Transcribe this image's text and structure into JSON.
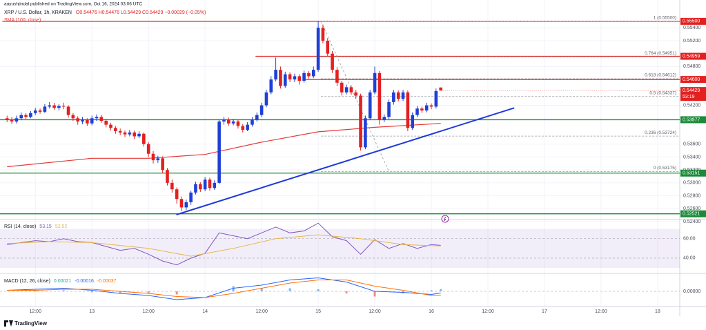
{
  "header": {
    "publisher": "aayushjindal published on TradingView.com, Oct 16, 2024 03:06 UTC",
    "symbol": "XRP / U.S. Dollar, 1h, KRAKEN",
    "ohlc": "O0.54476 H0.54476 L0.54429 C0.54429 −0.00029 (−0.05%)"
  },
  "footer": {
    "brand": "TradingView"
  },
  "chart_data": [
    {
      "type": "candlestick",
      "xlim": [
        -19.5,
        124.7
      ],
      "xticks": [
        {
          "value": -12,
          "label": "12:00"
        },
        {
          "value": 0,
          "label": "13"
        },
        {
          "value": 12,
          "label": "12:00"
        },
        {
          "value": 24,
          "label": "14"
        },
        {
          "value": 36,
          "label": "12:00"
        },
        {
          "value": 48,
          "label": "15"
        },
        {
          "value": 60,
          "label": "12:00"
        },
        {
          "value": 72,
          "label": "16"
        },
        {
          "value": 84,
          "label": "12:00"
        },
        {
          "value": 96,
          "label": "17"
        },
        {
          "value": 108,
          "label": "12:00"
        },
        {
          "value": 120,
          "label": "18"
        }
      ],
      "ylim": [
        0.52443,
        0.5583
      ],
      "yticks": [
        {
          "value": 0.554,
          "label": "0.55400"
        },
        {
          "value": 0.552,
          "label": "0.55200"
        },
        {
          "value": 0.548,
          "label": "0.54800"
        },
        {
          "value": 0.542,
          "label": "0.54200"
        },
        {
          "value": 0.536,
          "label": "0.53600"
        },
        {
          "value": 0.534,
          "label": "0.53400"
        },
        {
          "value": 0.532,
          "label": "0.53200"
        },
        {
          "value": 0.53,
          "label": "0.53000"
        },
        {
          "value": 0.528,
          "label": "0.52800"
        },
        {
          "value": 0.526,
          "label": "0.52600"
        },
        {
          "value": 0.524,
          "label": "0.52400"
        }
      ],
      "grid": true,
      "colors": {
        "up": "#1f3fd6",
        "down": "#e3201f"
      },
      "x": [
        -18,
        -17,
        -16,
        -15,
        -14,
        -13,
        -12,
        -11,
        -10,
        -9,
        -8,
        -7,
        -6,
        -5,
        -4,
        -3,
        -2,
        -1,
        0,
        1,
        2,
        3,
        4,
        5,
        6,
        7,
        8,
        9,
        10,
        11,
        12,
        13,
        14,
        15,
        16,
        17,
        18,
        19,
        20,
        21,
        22,
        23,
        24,
        25,
        26,
        27,
        28,
        29,
        30,
        31,
        32,
        33,
        34,
        35,
        36,
        37,
        38,
        39,
        40,
        41,
        42,
        43,
        44,
        45,
        46,
        47,
        48,
        49,
        50,
        51,
        52,
        53,
        54,
        55,
        56,
        57,
        58,
        59,
        60,
        61,
        62,
        63,
        64,
        65,
        66,
        67,
        68,
        69,
        70,
        71,
        72,
        73,
        74
      ],
      "open": [
        0.54,
        0.5398,
        0.5395,
        0.54,
        0.5405,
        0.5402,
        0.5408,
        0.5412,
        0.541,
        0.5418,
        0.542,
        0.5416,
        0.5419,
        0.5418,
        0.5405,
        0.54,
        0.5395,
        0.5398,
        0.5392,
        0.54,
        0.5402,
        0.5396,
        0.539,
        0.5385,
        0.538,
        0.5378,
        0.5375,
        0.5378,
        0.5372,
        0.5376,
        0.536,
        0.5345,
        0.5335,
        0.5338,
        0.532,
        0.53,
        0.529,
        0.5275,
        0.5262,
        0.527,
        0.5285,
        0.5298,
        0.529,
        0.5305,
        0.5292,
        0.53,
        0.5395,
        0.5398,
        0.5392,
        0.5395,
        0.5388,
        0.5382,
        0.539,
        0.5398,
        0.5405,
        0.542,
        0.544,
        0.546,
        0.5475,
        0.545,
        0.5468,
        0.546,
        0.5465,
        0.5458,
        0.547,
        0.5465,
        0.5475,
        0.554,
        0.552,
        0.55,
        0.5475,
        0.5455,
        0.544,
        0.5448,
        0.544,
        0.5435,
        0.5355,
        0.54,
        0.544,
        0.547,
        0.5398,
        0.5402,
        0.5425,
        0.544,
        0.543,
        0.544,
        0.5385,
        0.5405,
        0.5415,
        0.5412,
        0.542,
        0.5418,
        0.54476
      ],
      "high": [
        0.5404,
        0.5402,
        0.5404,
        0.5409,
        0.5408,
        0.5411,
        0.5416,
        0.5415,
        0.5422,
        0.5425,
        0.5424,
        0.5422,
        0.5424,
        0.542,
        0.5408,
        0.5403,
        0.5402,
        0.54,
        0.5404,
        0.5406,
        0.5405,
        0.5399,
        0.5393,
        0.5388,
        0.5384,
        0.5381,
        0.5382,
        0.5381,
        0.538,
        0.5378,
        0.5363,
        0.5349,
        0.5342,
        0.5341,
        0.5323,
        0.5305,
        0.5293,
        0.5279,
        0.5274,
        0.5288,
        0.5302,
        0.5301,
        0.5309,
        0.5308,
        0.5304,
        0.5398,
        0.5402,
        0.5401,
        0.5399,
        0.5398,
        0.5391,
        0.5394,
        0.5402,
        0.5409,
        0.5424,
        0.5444,
        0.5465,
        0.5494,
        0.548,
        0.5472,
        0.5471,
        0.5469,
        0.5468,
        0.5474,
        0.5473,
        0.548,
        0.555,
        0.5545,
        0.5524,
        0.5504,
        0.5479,
        0.5458,
        0.5452,
        0.5451,
        0.5444,
        0.5438,
        0.5404,
        0.5444,
        0.548,
        0.5473,
        0.5406,
        0.5429,
        0.5444,
        0.5443,
        0.5444,
        0.5443,
        0.5409,
        0.5419,
        0.5418,
        0.5424,
        0.5423,
        0.5446,
        0.54476
      ],
      "low": [
        0.5394,
        0.5391,
        0.5392,
        0.5397,
        0.5399,
        0.54,
        0.5405,
        0.5407,
        0.5408,
        0.5415,
        0.5413,
        0.5412,
        0.5414,
        0.5401,
        0.5396,
        0.539,
        0.5391,
        0.5388,
        0.5389,
        0.5396,
        0.5393,
        0.5386,
        0.5381,
        0.5376,
        0.5374,
        0.5371,
        0.5372,
        0.5368,
        0.5369,
        0.5356,
        0.534,
        0.533,
        0.5331,
        0.5315,
        0.5296,
        0.5285,
        0.5268,
        0.5256,
        0.5258,
        0.5266,
        0.5282,
        0.5286,
        0.5287,
        0.5288,
        0.5289,
        0.5298,
        0.539,
        0.5388,
        0.5389,
        0.5384,
        0.5378,
        0.538,
        0.5387,
        0.5395,
        0.5402,
        0.5417,
        0.5437,
        0.5457,
        0.5446,
        0.5447,
        0.5456,
        0.5456,
        0.5452,
        0.5455,
        0.5461,
        0.5462,
        0.5472,
        0.5516,
        0.5496,
        0.547,
        0.545,
        0.5435,
        0.5437,
        0.5436,
        0.543,
        0.535,
        0.5352,
        0.5397,
        0.5437,
        0.539,
        0.5394,
        0.5399,
        0.5421,
        0.5426,
        0.5427,
        0.538,
        0.5382,
        0.5402,
        0.5408,
        0.5409,
        0.5414,
        0.5415,
        0.54429
      ],
      "close": [
        0.5398,
        0.5395,
        0.54,
        0.5405,
        0.5402,
        0.5408,
        0.5412,
        0.541,
        0.5418,
        0.542,
        0.5416,
        0.5419,
        0.5418,
        0.5405,
        0.54,
        0.5395,
        0.5398,
        0.5392,
        0.54,
        0.5402,
        0.5396,
        0.539,
        0.5385,
        0.538,
        0.5378,
        0.5375,
        0.5378,
        0.5372,
        0.5376,
        0.536,
        0.5345,
        0.5335,
        0.5338,
        0.532,
        0.53,
        0.529,
        0.5275,
        0.5262,
        0.527,
        0.5285,
        0.5298,
        0.529,
        0.5305,
        0.5292,
        0.53,
        0.5395,
        0.5398,
        0.5392,
        0.5395,
        0.5388,
        0.5382,
        0.539,
        0.5398,
        0.5405,
        0.542,
        0.544,
        0.546,
        0.5475,
        0.545,
        0.5468,
        0.546,
        0.5465,
        0.5458,
        0.547,
        0.5465,
        0.5475,
        0.554,
        0.552,
        0.55,
        0.5475,
        0.5455,
        0.544,
        0.5448,
        0.544,
        0.5435,
        0.5355,
        0.54,
        0.544,
        0.547,
        0.5398,
        0.5402,
        0.5425,
        0.544,
        0.543,
        0.544,
        0.5385,
        0.5405,
        0.5415,
        0.5412,
        0.542,
        0.5418,
        0.5442,
        0.54429
      ],
      "price_label": {
        "countdown": "53:19",
        "color": "#e3201f"
      },
      "sma": {
        "name": "SMA (100, close)",
        "color": "#e53935",
        "x": [
          -18,
          0,
          12,
          24,
          36,
          48,
          60,
          74
        ],
        "values": [
          0.5325,
          0.5338,
          0.5338,
          0.5344,
          0.5363,
          0.5379,
          0.5386,
          0.5392
        ]
      },
      "trendline": {
        "color": "#1f3ad8",
        "x": [
          17.9,
          89.6
        ],
        "values": [
          0.52507,
          0.5416
        ]
      },
      "levels": [
        {
          "value": 0.555,
          "label": "0.55500",
          "color": "#e3201f",
          "x_start": -19
        },
        {
          "value": 0.54959,
          "label": "0.54959",
          "color": "#e3201f",
          "x_start": 34.7
        },
        {
          "value": 0.546,
          "label": "0.54600",
          "color": "#e3201f",
          "x_start": 45
        },
        {
          "value": 0.53977,
          "label": "0.53977",
          "color": "#1b8a3a",
          "x_start": -19.5
        },
        {
          "value": 0.53151,
          "label": "0.53151",
          "color": "#1b8a3a",
          "x_start": -19.5
        },
        {
          "value": 0.52521,
          "label": "0.52521",
          "color": "#1b8a3a",
          "x_start": -19.5
        }
      ],
      "fib": {
        "color": "#9598a1",
        "x": [
          48.6,
          63
        ],
        "values": [
          0.555,
          0.53175
        ],
        "levels": [
          {
            "value": 0.555,
            "label": "1 (0.55500)"
          },
          {
            "value": 0.54951,
            "label": "0.764 (0.54951)"
          },
          {
            "value": 0.54612,
            "label": "0.618 (0.54612)"
          },
          {
            "value": 0.54337,
            "label": "0.5 (0.54337)"
          },
          {
            "value": 0.53724,
            "label": "0.236 (0.53724)"
          },
          {
            "value": 0.53175,
            "label": "0 (0.53175)"
          }
        ]
      }
    },
    {
      "type": "line",
      "title": "RSI (14, close)",
      "ylim": [
        25,
        79
      ],
      "yticks": [
        {
          "value": 60,
          "label": "60.00"
        },
        {
          "value": 40,
          "label": "40.00"
        }
      ],
      "band": [
        30,
        70
      ],
      "band_color": "#7e57c2",
      "series": [
        {
          "color": "#7e57c2",
          "x": [
            -18,
            -15,
            -12,
            -9,
            -6,
            -3,
            0,
            3,
            6,
            9,
            12,
            15,
            18,
            21,
            24,
            27,
            30,
            33,
            36,
            39,
            42,
            45,
            48,
            51,
            54,
            57,
            60,
            63,
            66,
            69,
            72,
            74
          ],
          "values": [
            54,
            56,
            58,
            57,
            60,
            57,
            56,
            52,
            48,
            50,
            44,
            37,
            33,
            40,
            45,
            66,
            63,
            60,
            66,
            72,
            66,
            68,
            76,
            62,
            58,
            44,
            59,
            50,
            55,
            50,
            54,
            53.15
          ]
        },
        {
          "color": "#e8b64a",
          "x": [
            -18,
            -9,
            0,
            12,
            21,
            30,
            39,
            48,
            57,
            66,
            74
          ],
          "values": [
            55,
            57,
            56,
            50,
            42,
            50,
            60,
            64,
            60,
            54,
            52.52
          ]
        }
      ]
    },
    {
      "type": "line",
      "title": "MACD (12, 26, close)",
      "ylim": [
        -0.0014,
        0.0016
      ],
      "yticks": [
        {
          "value": 0,
          "label": "0.00000"
        }
      ],
      "series": [
        {
          "style": "histogram",
          "color": "#26a69a",
          "colors": {
            "up": "#80b3ff",
            "down": "#f28b82"
          },
          "x": [
            -18,
            -12,
            -6,
            0,
            6,
            12,
            18,
            24,
            30,
            36,
            42,
            48,
            54,
            60,
            66,
            72,
            74
          ],
          "values": [
            0,
            0.0001,
            0.0001,
            -0.0001,
            -0.0002,
            -0.0002,
            -0.0003,
            0,
            0.0005,
            0.0003,
            0.0003,
            0.0002,
            -0.0002,
            -0.0005,
            -0.0002,
            0.0001,
            0.00021
          ]
        },
        {
          "color": "#2962ff",
          "x": [
            -18,
            -12,
            -6,
            0,
            6,
            12,
            18,
            24,
            30,
            36,
            42,
            48,
            54,
            60,
            66,
            72,
            74
          ],
          "values": [
            0.0001,
            0.0002,
            0.0003,
            0.0001,
            -0.0002,
            -0.0004,
            -0.0008,
            -0.0006,
            0.0003,
            0.0006,
            0.0011,
            0.0013,
            0.0009,
            0,
            -0.0001,
            -0.0003,
            -0.00016
          ]
        },
        {
          "color": "#ff6d00",
          "x": [
            -18,
            -12,
            -6,
            0,
            6,
            12,
            18,
            24,
            30,
            36,
            42,
            48,
            54,
            60,
            66,
            72,
            74
          ],
          "values": [
            0.0001,
            0.0001,
            0.0002,
            0.0002,
            0,
            -0.0002,
            -0.0005,
            -0.0006,
            -0.0002,
            0.0003,
            0.0008,
            0.0011,
            0.0011,
            0.0005,
            0.0001,
            -0.0004,
            -0.00037
          ]
        }
      ]
    }
  ]
}
